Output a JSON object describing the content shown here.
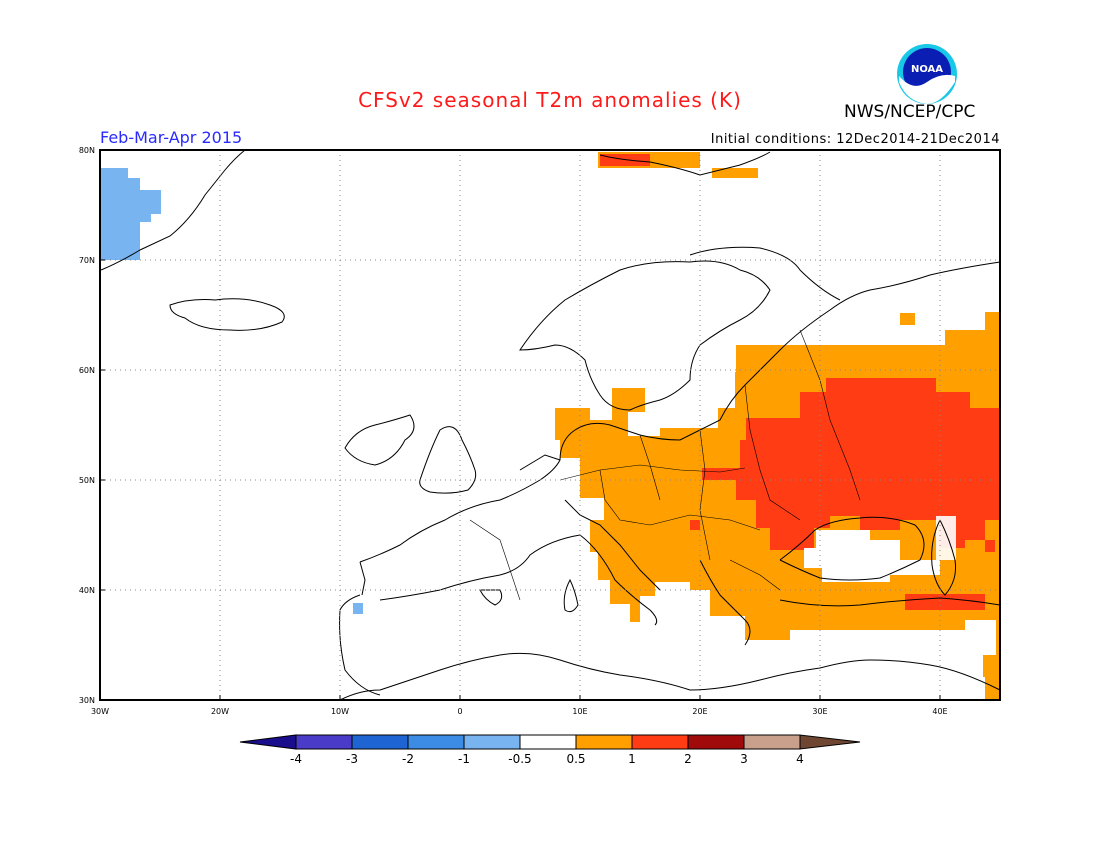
{
  "header": {
    "title": "CFSv2 seasonal T2m anomalies (K)",
    "org": "NWS/NCEP/CPC",
    "period": "Feb-Mar-Apr 2015",
    "initial_conditions": "Initial conditions: 12Dec2014-21Dec2014",
    "logo_text": "NOAA"
  },
  "map": {
    "lon_range": [
      -30,
      45
    ],
    "lat_range": [
      30,
      80
    ],
    "lat_labels": [
      "80N",
      "70N",
      "60N",
      "50N",
      "40N",
      "30N"
    ],
    "lon_labels": [
      "30W",
      "20W",
      "10W",
      "0",
      "10E",
      "20E",
      "30E",
      "40E"
    ],
    "grid": "dotted"
  },
  "colorbar": {
    "labels": [
      "-4",
      "-3",
      "-2",
      "-1",
      "-0.5",
      "0.5",
      "1",
      "2",
      "3",
      "4"
    ],
    "colors": [
      "#1a0e8c",
      "#4a3cc8",
      "#1e64d2",
      "#3c8ce6",
      "#78b4f0",
      "#ffffff",
      "#ffa000",
      "#ff3c14",
      "#a00a0a",
      "#c8a08c",
      "#6e4632"
    ]
  },
  "colors": {
    "warm_05_1": "#ffa000",
    "warm_1_2": "#ff3c14",
    "cool_05_1": "#78b4f0",
    "title": "#ff1a1a",
    "period": "#2a2aff"
  }
}
